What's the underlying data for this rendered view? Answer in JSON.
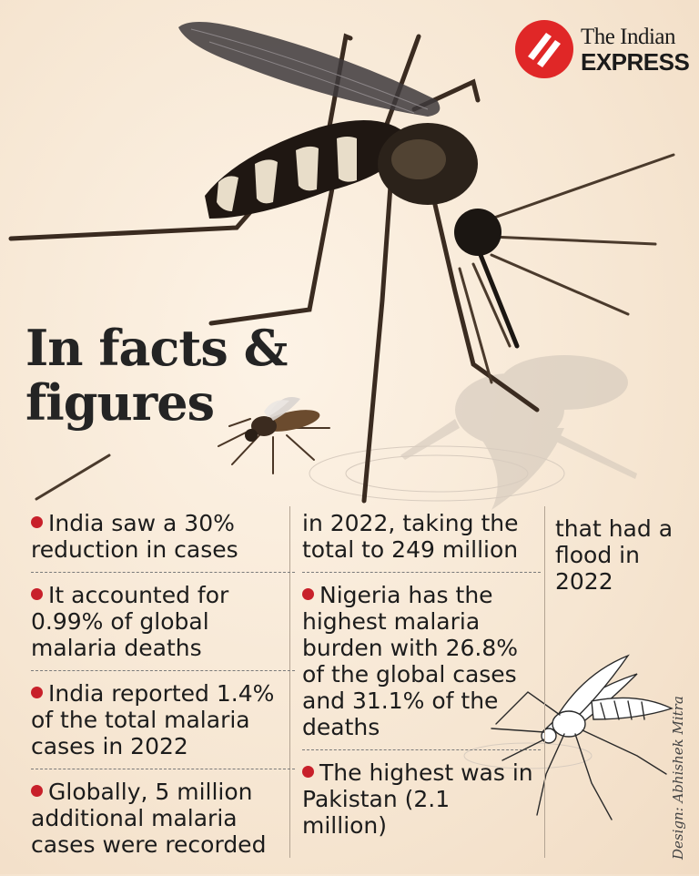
{
  "logo": {
    "line1": "The Indian",
    "line2": "EXPRESS",
    "brand_color": "#e02727"
  },
  "heading": {
    "line1": "In facts &",
    "line2": "figures"
  },
  "colors": {
    "bullet": "#c8202a",
    "background": "#f6e6d2",
    "text": "#1c1c1c"
  },
  "column1": {
    "facts": [
      "India saw a 30% reduction in cases",
      "It accounted for 0.99% of global malaria deaths",
      "India reported 1.4% of the total malaria cases in 2022",
      "Globally, 5 million additional malaria cases were recorded"
    ]
  },
  "column2": {
    "continuation": "in 2022, taking the total to 249 million",
    "facts": [
      "Nigeria has the highest malaria burden with 26.8% of the global cases and 31.1% of the deaths",
      "The highest was in Pakistan (2.1 million)"
    ]
  },
  "column3": {
    "continuation": "that had a flood in 2022"
  },
  "credit": "Design: Abhishek Mitra"
}
